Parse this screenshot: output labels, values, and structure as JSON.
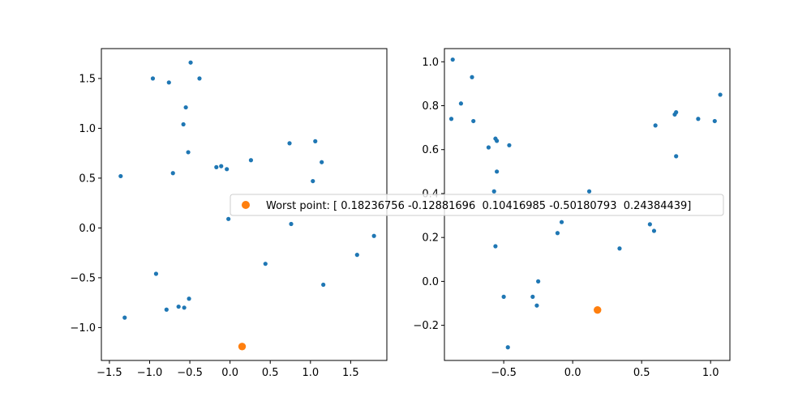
{
  "chart_data": [
    {
      "type": "scatter",
      "title": "",
      "xlabel": "",
      "ylabel": "",
      "xlim": [
        -1.6,
        1.95
      ],
      "ylim": [
        -1.33,
        1.8
      ],
      "xticks": [
        -1.5,
        -1.0,
        -0.5,
        0.0,
        0.5,
        1.0,
        1.5
      ],
      "xtick_labels": [
        "−1.5",
        "−1.0",
        "−0.5",
        "0.0",
        "0.5",
        "1.0",
        "1.5"
      ],
      "yticks": [
        -1.0,
        -0.5,
        0.0,
        0.5,
        1.0,
        1.5
      ],
      "ytick_labels": [
        "−1.0",
        "−0.5",
        "0.0",
        "0.5",
        "1.0",
        "1.5"
      ],
      "grid": false,
      "series": [
        {
          "color": "#1f77b4",
          "points": [
            [
              -0.49,
              1.66
            ],
            [
              -0.96,
              1.5
            ],
            [
              -0.76,
              1.46
            ],
            [
              -0.38,
              1.5
            ],
            [
              -0.55,
              1.21
            ],
            [
              -0.58,
              1.04
            ],
            [
              -0.52,
              0.76
            ],
            [
              -1.36,
              0.52
            ],
            [
              -0.71,
              0.55
            ],
            [
              -0.17,
              0.61
            ],
            [
              -0.11,
              0.62
            ],
            [
              -0.04,
              0.59
            ],
            [
              0.26,
              0.68
            ],
            [
              0.74,
              0.85
            ],
            [
              1.06,
              0.87
            ],
            [
              1.14,
              0.66
            ],
            [
              1.03,
              0.47
            ],
            [
              -0.02,
              0.09
            ],
            [
              0.76,
              0.04
            ],
            [
              1.79,
              -0.08
            ],
            [
              1.58,
              -0.27
            ],
            [
              0.44,
              -0.36
            ],
            [
              -0.92,
              -0.46
            ],
            [
              1.16,
              -0.57
            ],
            [
              -0.51,
              -0.71
            ],
            [
              -0.64,
              -0.79
            ],
            [
              -0.57,
              -0.8
            ],
            [
              -0.79,
              -0.82
            ],
            [
              -1.31,
              -0.9
            ]
          ]
        },
        {
          "color": "#ff7f0e",
          "points": [
            [
              0.15,
              -1.19
            ]
          ]
        }
      ]
    },
    {
      "type": "scatter",
      "title": "",
      "xlabel": "",
      "ylabel": "",
      "xlim": [
        -0.93,
        1.14
      ],
      "ylim": [
        -0.36,
        1.06
      ],
      "xticks": [
        -0.5,
        0.0,
        0.5,
        1.0
      ],
      "xtick_labels": [
        "−0.5",
        "0.0",
        "0.5",
        "1.0"
      ],
      "yticks": [
        -0.2,
        0.0,
        0.2,
        0.4,
        0.6,
        0.8,
        1.0
      ],
      "ytick_labels": [
        "−0.2",
        "0.0",
        "0.2",
        "0.4",
        "0.6",
        "0.8",
        "1.0"
      ],
      "grid": false,
      "series": [
        {
          "color": "#1f77b4",
          "points": [
            [
              -0.87,
              1.01
            ],
            [
              -0.73,
              0.93
            ],
            [
              -0.81,
              0.81
            ],
            [
              -0.88,
              0.74
            ],
            [
              -0.72,
              0.73
            ],
            [
              -0.56,
              0.65
            ],
            [
              -0.55,
              0.64
            ],
            [
              -0.61,
              0.61
            ],
            [
              -0.46,
              0.62
            ],
            [
              -0.55,
              0.5
            ],
            [
              -0.57,
              0.41
            ],
            [
              0.12,
              0.41
            ],
            [
              -0.08,
              0.27
            ],
            [
              -0.11,
              0.22
            ],
            [
              0.56,
              0.26
            ],
            [
              0.59,
              0.23
            ],
            [
              -0.56,
              0.16
            ],
            [
              0.34,
              0.15
            ],
            [
              -0.25,
              0.0
            ],
            [
              -0.5,
              -0.07
            ],
            [
              -0.29,
              -0.07
            ],
            [
              -0.26,
              -0.11
            ],
            [
              -0.47,
              -0.3
            ],
            [
              0.6,
              0.71
            ],
            [
              0.74,
              0.76
            ],
            [
              0.75,
              0.77
            ],
            [
              0.91,
              0.74
            ],
            [
              1.03,
              0.73
            ],
            [
              1.07,
              0.85
            ],
            [
              0.75,
              0.57
            ]
          ]
        },
        {
          "color": "#ff7f0e",
          "points": [
            [
              0.18,
              -0.13
            ]
          ]
        }
      ]
    }
  ],
  "legend": {
    "label": "Worst point: [ 0.18236756 -0.12881696  0.10416985 -0.50180793  0.24384439]",
    "marker_color": "#ff7f0e",
    "placement": "center"
  }
}
